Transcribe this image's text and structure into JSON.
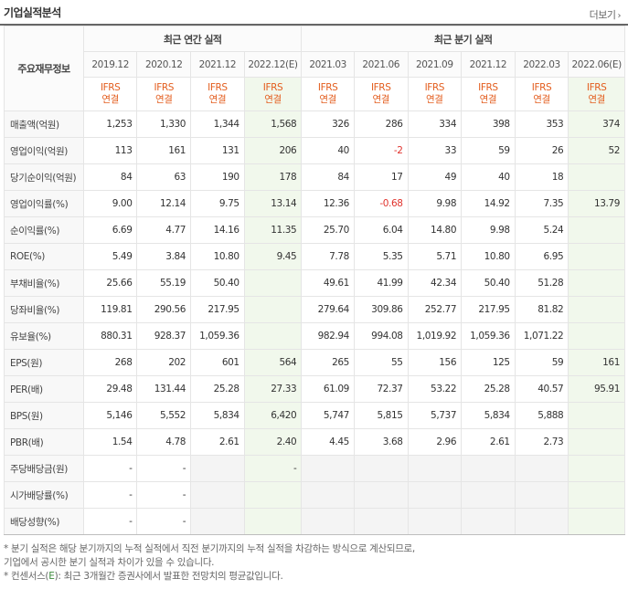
{
  "title": "기업실적분석",
  "more_label": "더보기",
  "more_chevron": "›",
  "corner_label": "주요재무정보",
  "groups": {
    "annual": "최근 연간 실적",
    "quarterly": "최근 분기 실적"
  },
  "periods": [
    "2019.12",
    "2020.12",
    "2021.12",
    "2022.12(E)",
    "2021.03",
    "2021.06",
    "2021.09",
    "2021.12",
    "2022.03",
    "2022.06(E)"
  ],
  "basis_top": "IFRS",
  "basis_bottom": "연결",
  "rows": [
    {
      "label": "매출액(억원)",
      "values": [
        "1,253",
        "1,330",
        "1,344",
        "1,568",
        "326",
        "286",
        "334",
        "398",
        "353",
        "374"
      ]
    },
    {
      "label": "영업이익(억원)",
      "values": [
        "113",
        "161",
        "131",
        "206",
        "40",
        "-2",
        "33",
        "59",
        "26",
        "52"
      ]
    },
    {
      "label": "당기순이익(억원)",
      "values": [
        "84",
        "63",
        "190",
        "178",
        "84",
        "17",
        "49",
        "40",
        "18",
        ""
      ]
    },
    {
      "label": "영업이익률(%)",
      "values": [
        "9.00",
        "12.14",
        "9.75",
        "13.14",
        "12.36",
        "-0.68",
        "9.98",
        "14.92",
        "7.35",
        "13.79"
      ]
    },
    {
      "label": "순이익률(%)",
      "values": [
        "6.69",
        "4.77",
        "14.16",
        "11.35",
        "25.70",
        "6.04",
        "14.80",
        "9.98",
        "5.24",
        ""
      ]
    },
    {
      "label": "ROE(%)",
      "values": [
        "5.49",
        "3.84",
        "10.80",
        "9.45",
        "7.78",
        "5.35",
        "5.71",
        "10.80",
        "6.95",
        ""
      ]
    },
    {
      "label": "부채비율(%)",
      "values": [
        "25.66",
        "55.19",
        "50.40",
        "",
        "49.61",
        "41.99",
        "42.34",
        "50.40",
        "51.28",
        ""
      ]
    },
    {
      "label": "당좌비율(%)",
      "values": [
        "119.81",
        "290.56",
        "217.95",
        "",
        "279.64",
        "309.86",
        "252.77",
        "217.95",
        "81.82",
        ""
      ]
    },
    {
      "label": "유보율(%)",
      "values": [
        "880.31",
        "928.37",
        "1,059.36",
        "",
        "982.94",
        "994.08",
        "1,019.92",
        "1,059.36",
        "1,071.22",
        ""
      ]
    },
    {
      "label": "EPS(원)",
      "values": [
        "268",
        "202",
        "601",
        "564",
        "265",
        "55",
        "156",
        "125",
        "59",
        "161"
      ]
    },
    {
      "label": "PER(배)",
      "values": [
        "29.48",
        "131.44",
        "25.28",
        "27.33",
        "61.09",
        "72.37",
        "53.22",
        "25.28",
        "40.57",
        "95.91"
      ]
    },
    {
      "label": "BPS(원)",
      "values": [
        "5,146",
        "5,552",
        "5,834",
        "6,420",
        "5,747",
        "5,815",
        "5,737",
        "5,834",
        "5,888",
        ""
      ]
    },
    {
      "label": "PBR(배)",
      "values": [
        "1.54",
        "4.78",
        "2.61",
        "2.40",
        "4.45",
        "3.68",
        "2.96",
        "2.61",
        "2.73",
        ""
      ]
    },
    {
      "label": "주당배당금(원)",
      "values": [
        "-",
        "-",
        "",
        "-",
        "",
        "",
        "",
        "",
        "",
        ""
      ]
    },
    {
      "label": "시가배당률(%)",
      "values": [
        "-",
        "-",
        "",
        "",
        "",
        "",
        "",
        "",
        "",
        ""
      ]
    },
    {
      "label": "배당성향(%)",
      "values": [
        "-",
        "-",
        "",
        "",
        "",
        "",
        "",
        "",
        "",
        ""
      ]
    }
  ],
  "notes": [
    "* 분기 실적은 해당 분기까지의 누적 실적에서 직전 분기까지의 누적 실적을 차감하는 방식으로 계산되므로,",
    "   기업에서 공시한 분기 실적과 차이가 있을 수 있습니다.",
    "* 컨센서스(",
    "E",
    "): 최근 3개월간 증권사에서 발표한 전망치의 평균값입니다."
  ]
}
